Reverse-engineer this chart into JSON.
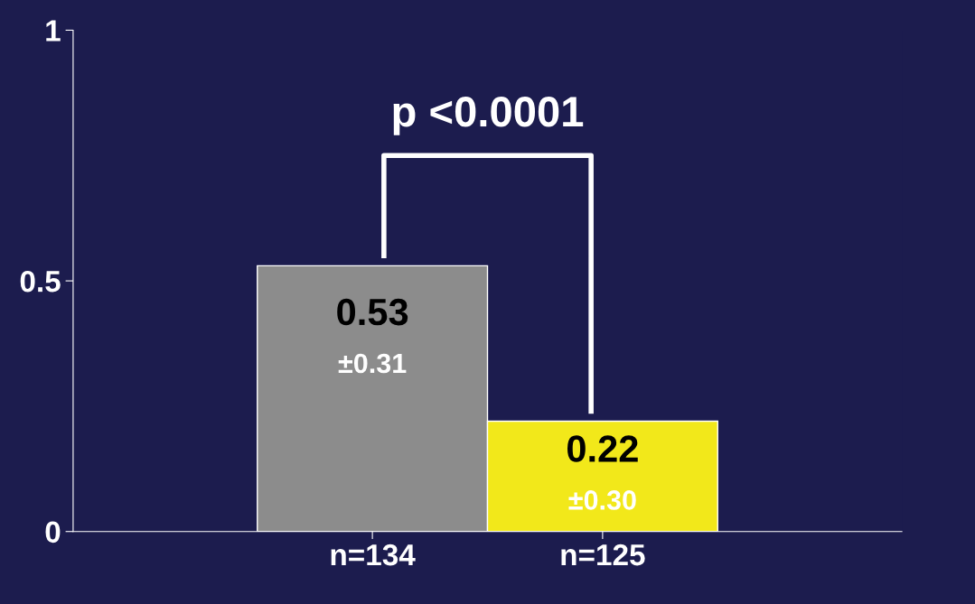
{
  "chart_data": {
    "type": "bar",
    "categories": [
      "n=134",
      "n=125"
    ],
    "values": [
      0.53,
      0.22
    ],
    "colors": [
      "#8c8c8c",
      "#f2e81a"
    ],
    "value_labels": [
      "0.53\n±0.31",
      "0.22\n±0.30"
    ],
    "ylim": [
      0,
      1
    ],
    "yticks": [
      0,
      0.5,
      1
    ],
    "grid": false,
    "annotations": [
      "p <0.0001"
    ]
  }
}
